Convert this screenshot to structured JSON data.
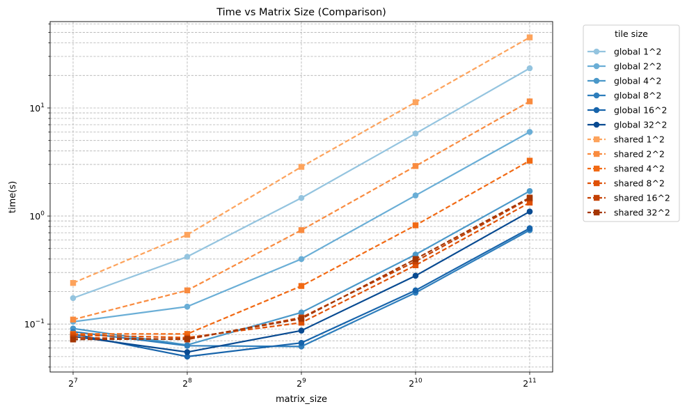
{
  "chart_data": {
    "type": "line",
    "title": "Time vs Matrix Size (Comparison)",
    "xlabel": "matrix_size",
    "ylabel": "time(s)",
    "x_scale": "log2",
    "y_scale": "log10",
    "x": [
      128,
      256,
      512,
      1024,
      2048
    ],
    "x_tick_labels": [
      {
        "base": "2",
        "exp": "7"
      },
      {
        "base": "2",
        "exp": "8"
      },
      {
        "base": "2",
        "exp": "9"
      },
      {
        "base": "2",
        "exp": "10"
      },
      {
        "base": "2",
        "exp": "11"
      }
    ],
    "y_tick_labels": [
      {
        "base": "10",
        "exp": "−1"
      },
      {
        "base": "10",
        "exp": "0"
      },
      {
        "base": "10",
        "exp": "1"
      }
    ],
    "ylim": [
      0.036,
      63
    ],
    "grid": "both, major and minor, dashed",
    "legend": {
      "title": "tile size",
      "placement": "outside-right-top"
    },
    "series": [
      {
        "name": "global 1^2",
        "style": "solid",
        "marker": "circle",
        "color": "#94c4df",
        "values": [
          0.174,
          0.42,
          1.47,
          5.8,
          23.3
        ]
      },
      {
        "name": "global 2^2",
        "style": "solid",
        "marker": "circle",
        "color": "#6aaed6",
        "values": [
          0.105,
          0.145,
          0.4,
          1.55,
          6.0
        ]
      },
      {
        "name": "global 4^2",
        "style": "solid",
        "marker": "circle",
        "color": "#4a98c9",
        "values": [
          0.091,
          0.064,
          0.128,
          0.44,
          1.7
        ]
      },
      {
        "name": "global 8^2",
        "style": "solid",
        "marker": "circle",
        "color": "#2e7ebc",
        "values": [
          0.085,
          0.063,
          0.062,
          0.195,
          0.74
        ]
      },
      {
        "name": "global 16^2",
        "style": "solid",
        "marker": "circle",
        "color": "#1764ab",
        "values": [
          0.081,
          0.05,
          0.067,
          0.205,
          0.77
        ]
      },
      {
        "name": "global 32^2",
        "style": "solid",
        "marker": "circle",
        "color": "#084a91",
        "values": [
          0.077,
          0.055,
          0.087,
          0.28,
          1.1
        ]
      },
      {
        "name": "shared 1^2",
        "style": "dashed",
        "marker": "square",
        "color": "#fda35c",
        "values": [
          0.24,
          0.67,
          2.85,
          11.3,
          45.0
        ]
      },
      {
        "name": "shared 2^2",
        "style": "dashed",
        "marker": "square",
        "color": "#f98b3f",
        "values": [
          0.11,
          0.205,
          0.74,
          2.9,
          11.5
        ]
      },
      {
        "name": "shared 4^2",
        "style": "dashed",
        "marker": "square",
        "color": "#f16913",
        "values": [
          0.081,
          0.081,
          0.225,
          0.82,
          3.25
        ]
      },
      {
        "name": "shared 8^2",
        "style": "dashed",
        "marker": "square",
        "color": "#df5005",
        "values": [
          0.079,
          0.075,
          0.103,
          0.35,
          1.33
        ]
      },
      {
        "name": "shared 16^2",
        "style": "dashed",
        "marker": "square",
        "color": "#c44103",
        "values": [
          0.075,
          0.072,
          0.115,
          0.38,
          1.45
        ]
      },
      {
        "name": "shared 32^2",
        "style": "dashed",
        "marker": "square",
        "color": "#a53603",
        "values": [
          0.072,
          0.073,
          0.112,
          0.4,
          1.48
        ]
      }
    ]
  }
}
